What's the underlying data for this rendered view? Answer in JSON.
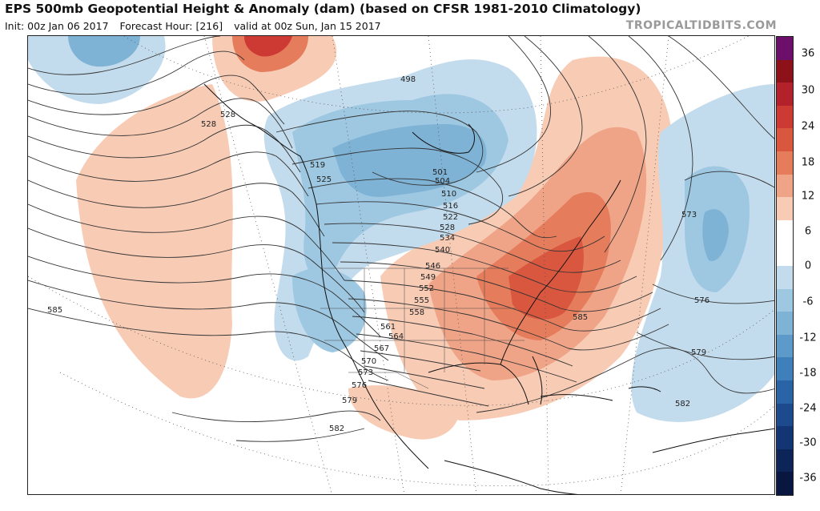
{
  "header": {
    "title": "EPS 500mb Geopotential Height & Anomaly (dam) (based on CFSR 1981-2010 Climatology)",
    "init": "Init: 00z Jan 06 2017",
    "forecast_hour": "Forecast Hour: [216]",
    "valid": "valid at 00z Sun, Jan 15 2017",
    "source": "TROPICALTIDBITS.COM"
  },
  "colorbar": {
    "ticks": [
      "36",
      "30",
      "24",
      "18",
      "12",
      "6",
      "0",
      "-6",
      "-12",
      "-18",
      "-24",
      "-30",
      "-36"
    ],
    "colors": [
      "#6b0f6b",
      "#8c1119",
      "#b3222a",
      "#cc3a33",
      "#d9573f",
      "#e57c5c",
      "#f0a487",
      "#f8cbb5",
      "#ffffff",
      "#ffffff",
      "#c3dced",
      "#9ec8e1",
      "#7fb3d6",
      "#5e9ac9",
      "#3f7fba",
      "#2b64a6",
      "#1d4a8c",
      "#143573",
      "#0d2459",
      "#081640"
    ]
  },
  "map": {
    "contour_labels": [
      {
        "text": "498"
      },
      {
        "text": "501"
      },
      {
        "text": "504"
      },
      {
        "text": "510"
      },
      {
        "text": "516"
      },
      {
        "text": "519"
      },
      {
        "text": "522"
      },
      {
        "text": "525"
      },
      {
        "text": "528"
      },
      {
        "text": "528"
      },
      {
        "text": "528"
      },
      {
        "text": "534"
      },
      {
        "text": "540"
      },
      {
        "text": "546"
      },
      {
        "text": "549"
      },
      {
        "text": "552"
      },
      {
        "text": "555"
      },
      {
        "text": "558"
      },
      {
        "text": "561"
      },
      {
        "text": "564"
      },
      {
        "text": "567"
      },
      {
        "text": "570"
      },
      {
        "text": "573"
      },
      {
        "text": "573"
      },
      {
        "text": "576"
      },
      {
        "text": "576"
      },
      {
        "text": "579"
      },
      {
        "text": "579"
      },
      {
        "text": "582"
      },
      {
        "text": "582"
      },
      {
        "text": "585"
      },
      {
        "text": "585"
      }
    ]
  }
}
